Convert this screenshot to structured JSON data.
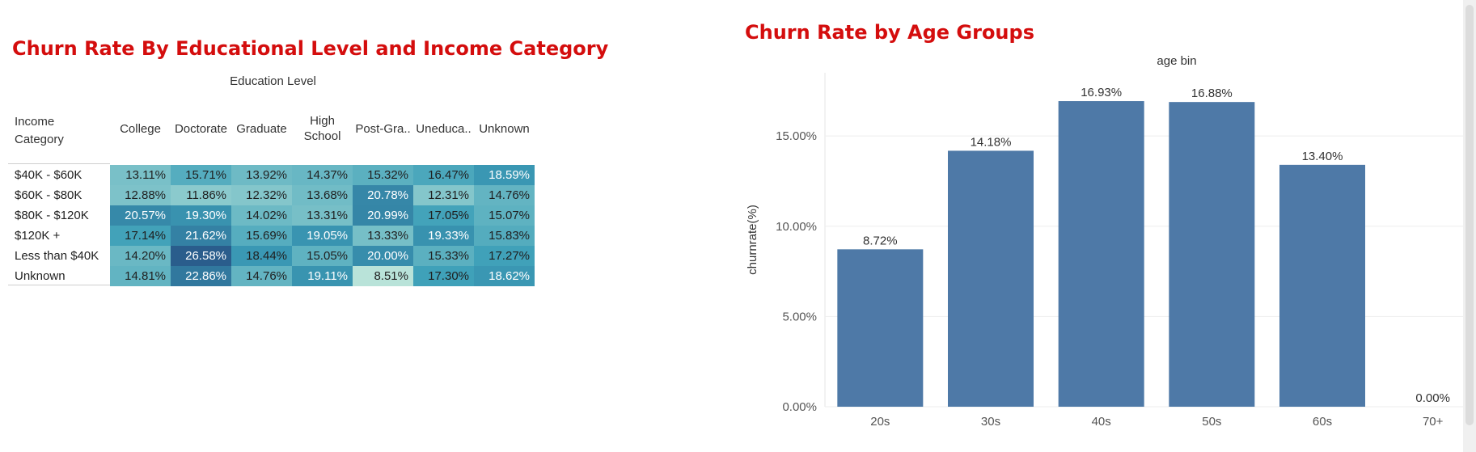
{
  "heatmap": {
    "title": "Churn Rate By Educational Level and Income Category",
    "column_group_label": "Education Level",
    "row_header": "Income Category",
    "columns": [
      "College",
      "Doctorate",
      "Graduate",
      "High\nSchool",
      "Post-Gra..",
      "Uneduca..",
      "Unknown"
    ],
    "rows": [
      {
        "label": "$40K - $60K",
        "values": [
          13.11,
          15.71,
          13.92,
          14.37,
          15.32,
          16.47,
          18.59
        ]
      },
      {
        "label": "$60K - $80K",
        "values": [
          12.88,
          11.86,
          12.32,
          13.68,
          20.78,
          12.31,
          14.76
        ]
      },
      {
        "label": "$80K - $120K",
        "values": [
          20.57,
          19.3,
          14.02,
          13.31,
          20.99,
          17.05,
          15.07
        ]
      },
      {
        "label": "$120K +",
        "values": [
          17.14,
          21.62,
          15.69,
          19.05,
          13.33,
          19.33,
          15.83
        ]
      },
      {
        "label": "Less than $40K",
        "values": [
          14.2,
          26.58,
          18.44,
          15.05,
          20.0,
          15.33,
          17.27
        ]
      },
      {
        "label": "Unknown",
        "values": [
          14.81,
          22.86,
          14.76,
          19.11,
          8.51,
          17.3,
          18.62
        ]
      }
    ],
    "cells_text": [
      [
        "13.11%",
        "15.71%",
        "13.92%",
        "14.37%",
        "15.32%",
        "16.47%",
        "18.59%"
      ],
      [
        "12.88%",
        "11.86%",
        "12.32%",
        "13.68%",
        "20.78%",
        "12.31%",
        "14.76%"
      ],
      [
        "20.57%",
        "19.30%",
        "14.02%",
        "13.31%",
        "20.99%",
        "17.05%",
        "15.07%"
      ],
      [
        "17.14%",
        "21.62%",
        "15.69%",
        "19.05%",
        "13.33%",
        "19.33%",
        "15.83%"
      ],
      [
        "14.20%",
        "26.58%",
        "18.44%",
        "15.05%",
        "20.00%",
        "15.33%",
        "17.27%"
      ],
      [
        "14.81%",
        "22.86%",
        "14.76%",
        "19.11%",
        "8.51%",
        "17.30%",
        "18.62%"
      ]
    ],
    "color_low": "#b9e3d9",
    "color_mid": "#3c9fb8",
    "color_high": "#2a5d8c"
  },
  "chart_data": [
    {
      "type": "heatmap",
      "title": "Churn Rate By Educational Level and Income Category",
      "x": [
        "College",
        "Doctorate",
        "Graduate",
        "High School",
        "Post-Gra..",
        "Uneduca..",
        "Unknown"
      ],
      "y": [
        "$40K - $60K",
        "$60K - $80K",
        "$80K - $120K",
        "$120K +",
        "Less than $40K",
        "Unknown"
      ],
      "xlabel": "Education Level",
      "ylabel": "Income Category",
      "values": [
        [
          13.11,
          15.71,
          13.92,
          14.37,
          15.32,
          16.47,
          18.59
        ],
        [
          12.88,
          11.86,
          12.32,
          13.68,
          20.78,
          12.31,
          14.76
        ],
        [
          20.57,
          19.3,
          14.02,
          13.31,
          20.99,
          17.05,
          15.07
        ],
        [
          17.14,
          21.62,
          15.69,
          19.05,
          13.33,
          19.33,
          15.83
        ],
        [
          14.2,
          26.58,
          18.44,
          15.05,
          20.0,
          15.33,
          17.27
        ],
        [
          14.81,
          22.86,
          14.76,
          19.11,
          8.51,
          17.3,
          18.62
        ]
      ]
    },
    {
      "type": "bar",
      "title": "Churn Rate by Age Groups",
      "xlabel": "age bin",
      "ylabel": "churnrate(%)",
      "categories": [
        "20s",
        "30s",
        "40s",
        "50s",
        "60s",
        "70+"
      ],
      "values": [
        8.72,
        14.18,
        16.93,
        16.88,
        13.4,
        0.0
      ],
      "data_labels": [
        "8.72%",
        "14.18%",
        "16.93%",
        "16.88%",
        "13.40%",
        "0.00%"
      ],
      "ylim": [
        0,
        18.5
      ],
      "yticks": [
        0,
        5,
        10,
        15
      ],
      "ytick_labels": [
        "0.00%",
        "5.00%",
        "10.00%",
        "15.00%"
      ],
      "grid": true,
      "bar_color": "#4e79a7"
    }
  ]
}
